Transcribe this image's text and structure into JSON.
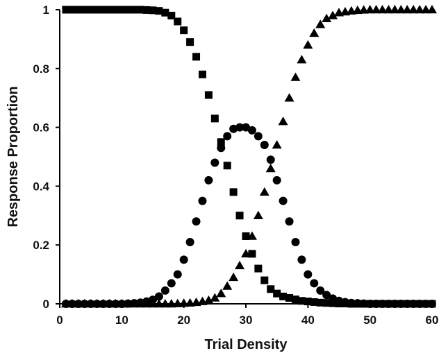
{
  "chart_data": {
    "type": "scatter",
    "title": "",
    "xlabel": "Trial Density",
    "ylabel": "Response Proportion",
    "xlim": [
      0,
      60
    ],
    "ylim": [
      0,
      1
    ],
    "xticks": [
      0,
      10,
      20,
      30,
      40,
      50,
      60
    ],
    "yticks": [
      0,
      0.2,
      0.4,
      0.6,
      0.8,
      1
    ],
    "ytick_labels": [
      "0",
      "0.2",
      "0.4",
      "0.6",
      "0.8",
      "1"
    ],
    "grid": false,
    "legend": "none",
    "series": [
      {
        "marker": "square",
        "color": "#000000",
        "x": [
          1,
          2,
          3,
          4,
          5,
          6,
          7,
          8,
          9,
          10,
          11,
          12,
          13,
          14,
          15,
          16,
          17,
          18,
          19,
          20,
          21,
          22,
          23,
          24,
          25,
          26,
          27,
          28,
          29,
          30,
          31,
          32,
          33,
          34,
          35,
          36,
          37,
          38,
          39,
          40,
          41,
          42,
          43,
          44,
          45,
          46,
          47,
          48,
          49,
          50,
          51,
          52,
          53,
          54,
          55,
          56,
          57,
          58,
          59,
          60
        ],
        "y": [
          1,
          1,
          1,
          1,
          1,
          1,
          1,
          1,
          1,
          1,
          1,
          1,
          1,
          0.999,
          0.998,
          0.996,
          0.99,
          0.98,
          0.96,
          0.93,
          0.89,
          0.84,
          0.78,
          0.71,
          0.63,
          0.55,
          0.47,
          0.38,
          0.3,
          0.23,
          0.17,
          0.12,
          0.08,
          0.05,
          0.035,
          0.025,
          0.02,
          0.015,
          0.01,
          0.008,
          0.006,
          0.004,
          0.003,
          0.002,
          0.001,
          0.001,
          0,
          0,
          0,
          0,
          0,
          0,
          0,
          0,
          0,
          0,
          0,
          0,
          0,
          0
        ]
      },
      {
        "marker": "circle",
        "color": "#000000",
        "x": [
          1,
          2,
          3,
          4,
          5,
          6,
          7,
          8,
          9,
          10,
          11,
          12,
          13,
          14,
          15,
          16,
          17,
          18,
          19,
          20,
          21,
          22,
          23,
          24,
          25,
          26,
          27,
          28,
          29,
          30,
          31,
          32,
          33,
          34,
          35,
          36,
          37,
          38,
          39,
          40,
          41,
          42,
          43,
          44,
          45,
          46,
          47,
          48,
          49,
          50,
          51,
          52,
          53,
          54,
          55,
          56,
          57,
          58,
          59,
          60
        ],
        "y": [
          0,
          0,
          0,
          0,
          0,
          0,
          0,
          0,
          0,
          0,
          0.001,
          0.002,
          0.004,
          0.008,
          0.014,
          0.025,
          0.045,
          0.07,
          0.1,
          0.15,
          0.21,
          0.28,
          0.35,
          0.42,
          0.48,
          0.53,
          0.57,
          0.595,
          0.6,
          0.6,
          0.59,
          0.57,
          0.54,
          0.49,
          0.42,
          0.35,
          0.28,
          0.21,
          0.15,
          0.1,
          0.07,
          0.045,
          0.03,
          0.018,
          0.01,
          0.006,
          0.003,
          0.002,
          0.001,
          0,
          0,
          0,
          0,
          0,
          0,
          0,
          0,
          0,
          0,
          0
        ]
      },
      {
        "marker": "triangle",
        "color": "#000000",
        "x": [
          1,
          2,
          3,
          4,
          5,
          6,
          7,
          8,
          9,
          10,
          11,
          12,
          13,
          14,
          15,
          16,
          17,
          18,
          19,
          20,
          21,
          22,
          23,
          24,
          25,
          26,
          27,
          28,
          29,
          30,
          31,
          32,
          33,
          34,
          35,
          36,
          37,
          38,
          39,
          40,
          41,
          42,
          43,
          44,
          45,
          46,
          47,
          48,
          49,
          50,
          51,
          52,
          53,
          54,
          55,
          56,
          57,
          58,
          59,
          60
        ],
        "y": [
          0,
          0,
          0,
          0,
          0,
          0,
          0,
          0,
          0,
          0,
          0,
          0,
          0,
          0,
          0,
          0,
          0,
          0,
          0.001,
          0.002,
          0.003,
          0.005,
          0.008,
          0.012,
          0.02,
          0.035,
          0.06,
          0.09,
          0.13,
          0.17,
          0.23,
          0.3,
          0.38,
          0.46,
          0.54,
          0.62,
          0.7,
          0.77,
          0.83,
          0.88,
          0.92,
          0.95,
          0.97,
          0.98,
          0.99,
          0.993,
          0.996,
          0.998,
          0.999,
          1,
          1,
          1,
          1,
          1,
          1,
          1,
          1,
          1,
          1,
          1
        ]
      }
    ]
  }
}
